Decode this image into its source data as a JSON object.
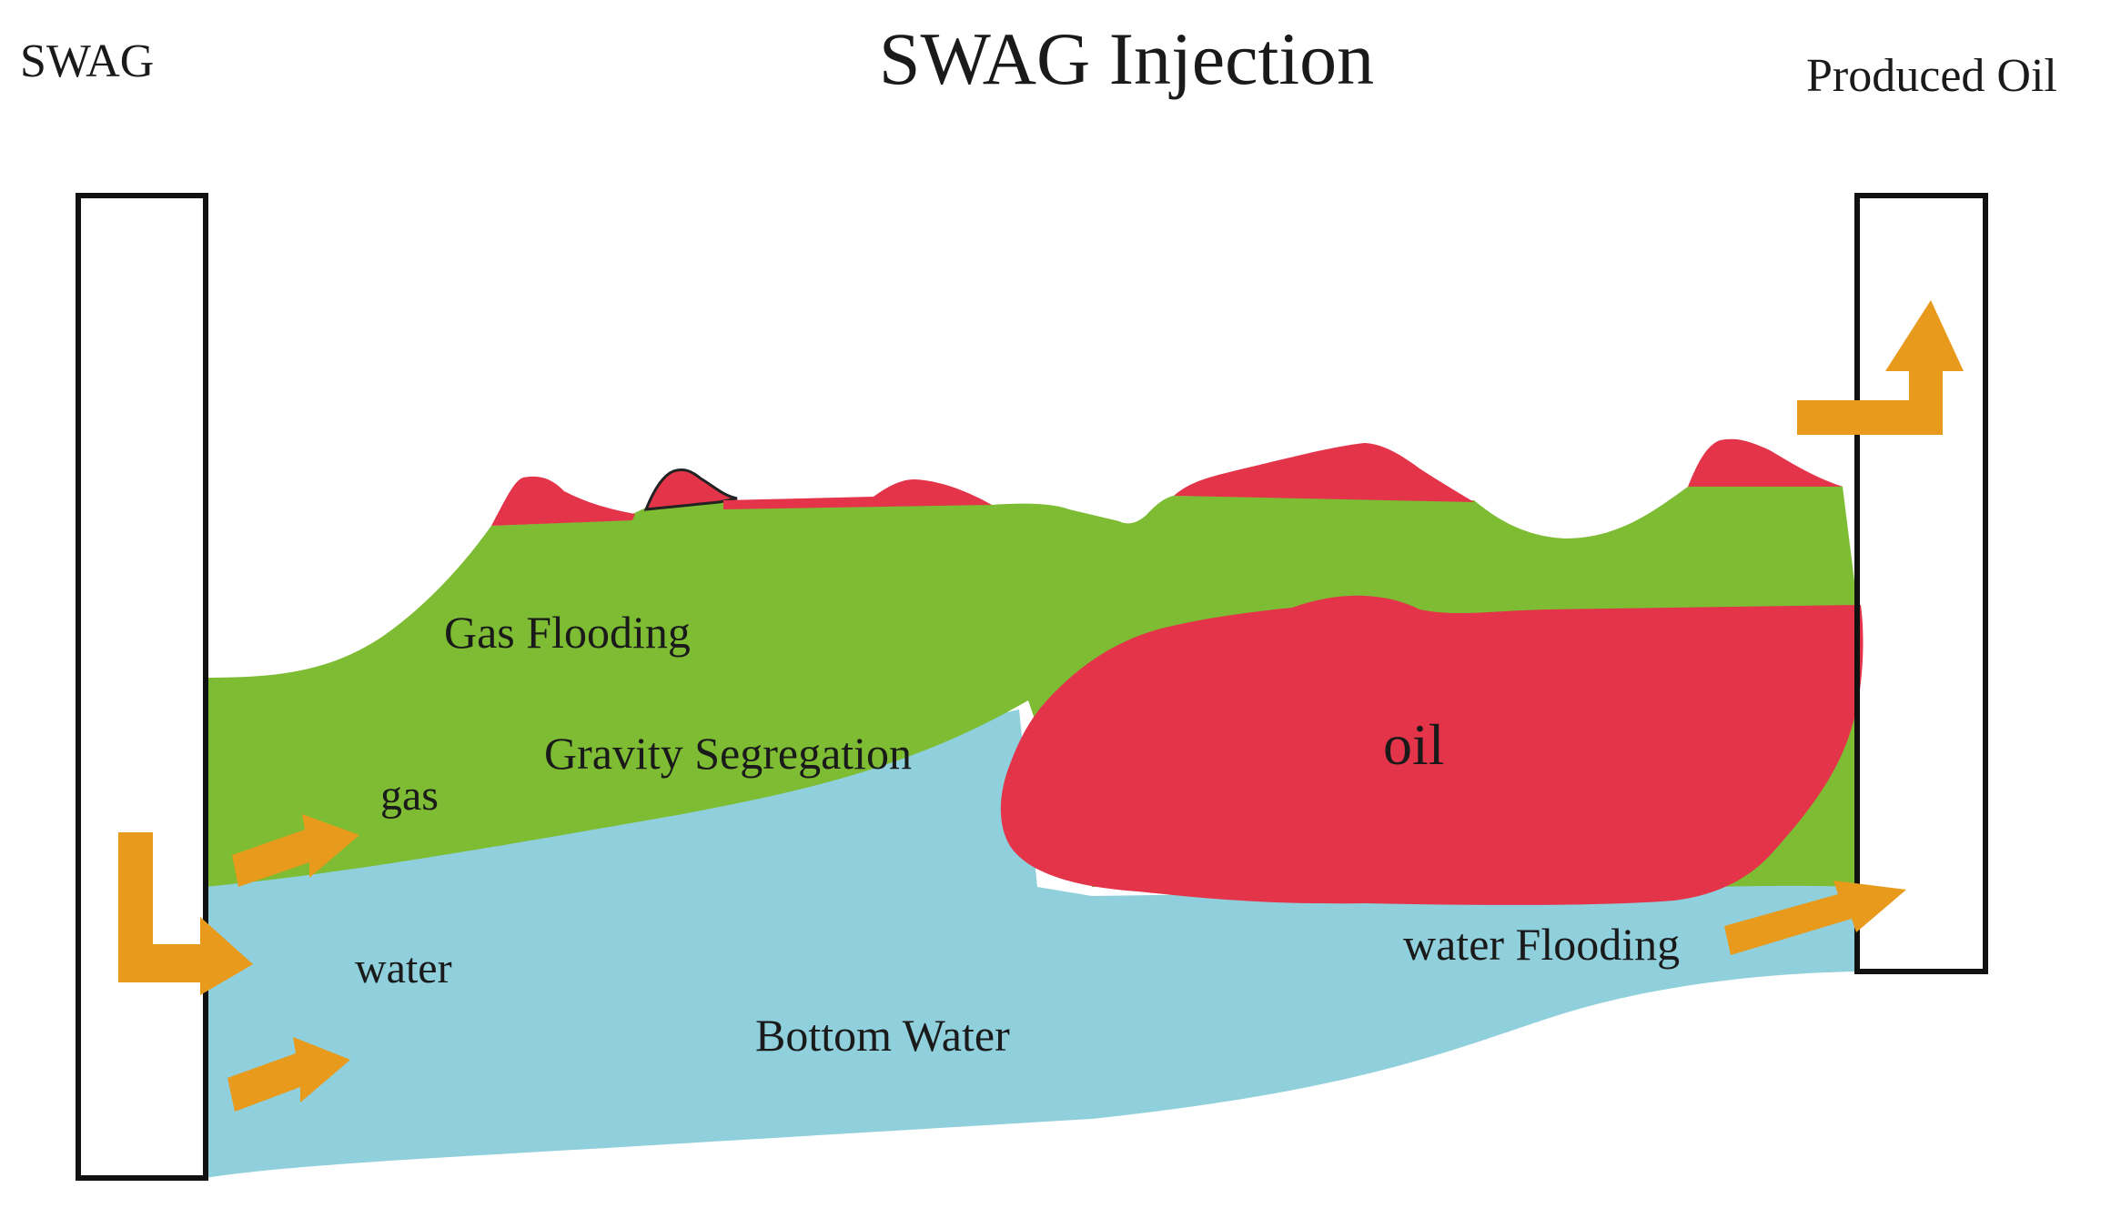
{
  "title": "SWAG Injection",
  "injector_label": "SWAG",
  "producer_label": "Produced Oil",
  "labels": {
    "gas_flooding": "Gas Flooding",
    "gravity_segregation": "Gravity Segregation",
    "gas": "gas",
    "water": "water",
    "oil": "oil",
    "water_flooding": "water Flooding",
    "bottom_water": "Bottom Water"
  },
  "colors": {
    "gas_zone": "#7dbc33",
    "oil_zone": "#e3344a",
    "water_zone": "#8fd0dc",
    "arrow": "#e89a1c",
    "well_outline": "#111111"
  }
}
